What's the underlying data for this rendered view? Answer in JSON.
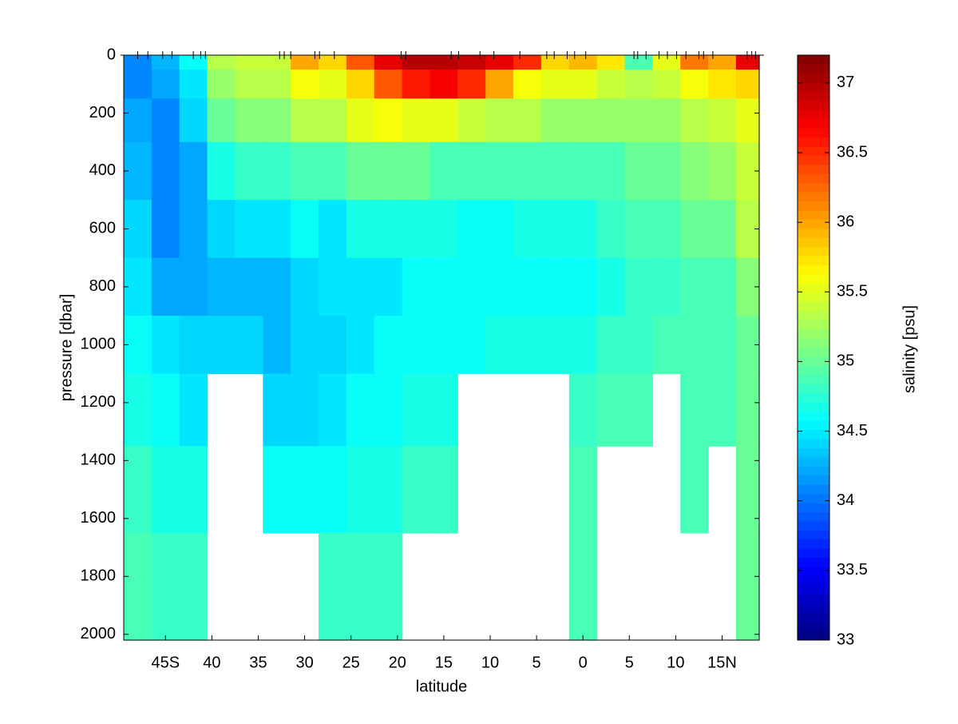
{
  "chart_data": {
    "type": "contour",
    "ylabel": "pressure [dbar]",
    "xlabel": "latitude",
    "colorbar_label": "salinity [psu]",
    "xlim": [
      -49.5,
      19
    ],
    "ylim": [
      0,
      2020
    ],
    "clim": [
      33,
      37.2
    ],
    "xticks": [
      {
        "value": -45,
        "label": "45S"
      },
      {
        "value": -40,
        "label": "40"
      },
      {
        "value": -35,
        "label": "35"
      },
      {
        "value": -30,
        "label": "30"
      },
      {
        "value": -25,
        "label": "25"
      },
      {
        "value": -20,
        "label": "20"
      },
      {
        "value": -15,
        "label": "15"
      },
      {
        "value": -10,
        "label": "10"
      },
      {
        "value": -5,
        "label": "5"
      },
      0,
      5,
      10,
      {
        "value": 15,
        "label": "15N"
      }
    ],
    "yticks": [
      0,
      200,
      400,
      600,
      800,
      1000,
      1200,
      1400,
      1600,
      1800,
      2000
    ],
    "cticks": [
      33,
      33.5,
      34,
      34.5,
      35,
      35.5,
      36,
      36.5,
      37
    ],
    "y_reversed": true,
    "colormap": "jet",
    "stations": [
      -48.0,
      -46.9,
      -45.3,
      -44.3,
      -42.0,
      -41.2,
      -40.7,
      -32.7,
      -32.2,
      -31.5,
      -28.9,
      -28.4,
      -26.8,
      -19.6,
      -19.1,
      -14.2,
      -13.4,
      -11.1,
      -9.6,
      -6.8,
      -3.9,
      -3.1,
      -1.7,
      -0.9,
      0.3,
      5.5,
      5.9,
      6.8,
      8.2,
      9.1,
      10.1,
      11.1,
      12.5,
      13.0,
      14.0,
      17.7,
      18.2,
      18.6
    ],
    "x": [
      -48,
      -45,
      -42,
      -39,
      -36,
      -33,
      -30,
      -27,
      -24,
      -21,
      -18,
      -15,
      -12,
      -9,
      -6,
      -3,
      0,
      3,
      6,
      9,
      12,
      15,
      18
    ],
    "y": [
      0,
      100,
      200,
      400,
      600,
      800,
      1000,
      1200,
      1500,
      1800
    ],
    "z": [
      [
        34.1,
        34.3,
        34.6,
        35.3,
        35.4,
        35.4,
        36.0,
        35.8,
        36.3,
        36.8,
        37.0,
        37.0,
        36.9,
        36.8,
        36.5,
        35.8,
        35.9,
        35.7,
        34.9,
        35.5,
        36.2,
        36.0,
        36.8
      ],
      [
        34.1,
        34.2,
        34.5,
        35.2,
        35.3,
        35.3,
        35.6,
        35.5,
        35.8,
        36.3,
        36.6,
        36.7,
        36.5,
        36.0,
        35.6,
        35.5,
        35.5,
        35.4,
        35.3,
        35.4,
        35.6,
        35.7,
        35.8
      ],
      [
        34.2,
        34.1,
        34.4,
        35.0,
        35.1,
        35.1,
        35.3,
        35.3,
        35.5,
        35.6,
        35.5,
        35.5,
        35.4,
        35.3,
        35.3,
        35.2,
        35.2,
        35.2,
        35.2,
        35.2,
        35.3,
        35.4,
        35.5
      ],
      [
        34.3,
        34.1,
        34.2,
        34.7,
        34.8,
        34.8,
        34.9,
        34.9,
        35.0,
        35.0,
        35.0,
        34.9,
        34.9,
        34.9,
        34.9,
        34.9,
        34.9,
        34.9,
        35.0,
        35.0,
        35.1,
        35.2,
        35.4
      ],
      [
        34.4,
        34.1,
        34.2,
        34.4,
        34.5,
        34.5,
        34.6,
        34.5,
        34.7,
        34.7,
        34.7,
        34.7,
        34.6,
        34.6,
        34.7,
        34.7,
        34.7,
        34.8,
        34.9,
        34.9,
        35.0,
        35.0,
        35.3
      ],
      [
        34.5,
        34.2,
        34.2,
        34.3,
        34.3,
        34.3,
        34.4,
        34.5,
        34.5,
        34.5,
        34.6,
        34.6,
        34.6,
        34.6,
        34.6,
        34.6,
        34.6,
        34.7,
        34.8,
        34.8,
        34.9,
        34.9,
        35.1
      ],
      [
        34.6,
        34.5,
        34.4,
        34.4,
        34.4,
        34.3,
        34.4,
        34.4,
        34.5,
        34.6,
        34.6,
        34.6,
        34.6,
        34.7,
        34.7,
        34.7,
        34.7,
        34.8,
        34.8,
        34.9,
        34.9,
        34.9,
        35.0
      ],
      [
        34.7,
        34.6,
        34.5,
        null,
        null,
        34.4,
        34.4,
        34.5,
        34.6,
        34.6,
        34.7,
        34.7,
        null,
        null,
        null,
        null,
        34.8,
        34.9,
        34.9,
        null,
        34.9,
        34.9,
        35.0
      ],
      [
        34.8,
        34.7,
        34.7,
        null,
        null,
        34.6,
        34.6,
        34.6,
        34.7,
        34.7,
        34.8,
        34.8,
        null,
        null,
        null,
        null,
        34.9,
        null,
        null,
        null,
        34.9,
        null,
        35.0
      ],
      [
        34.9,
        34.8,
        34.8,
        null,
        null,
        null,
        null,
        34.8,
        34.8,
        34.8,
        null,
        null,
        null,
        null,
        null,
        null,
        34.9,
        null,
        null,
        null,
        null,
        null,
        35.0
      ]
    ]
  }
}
